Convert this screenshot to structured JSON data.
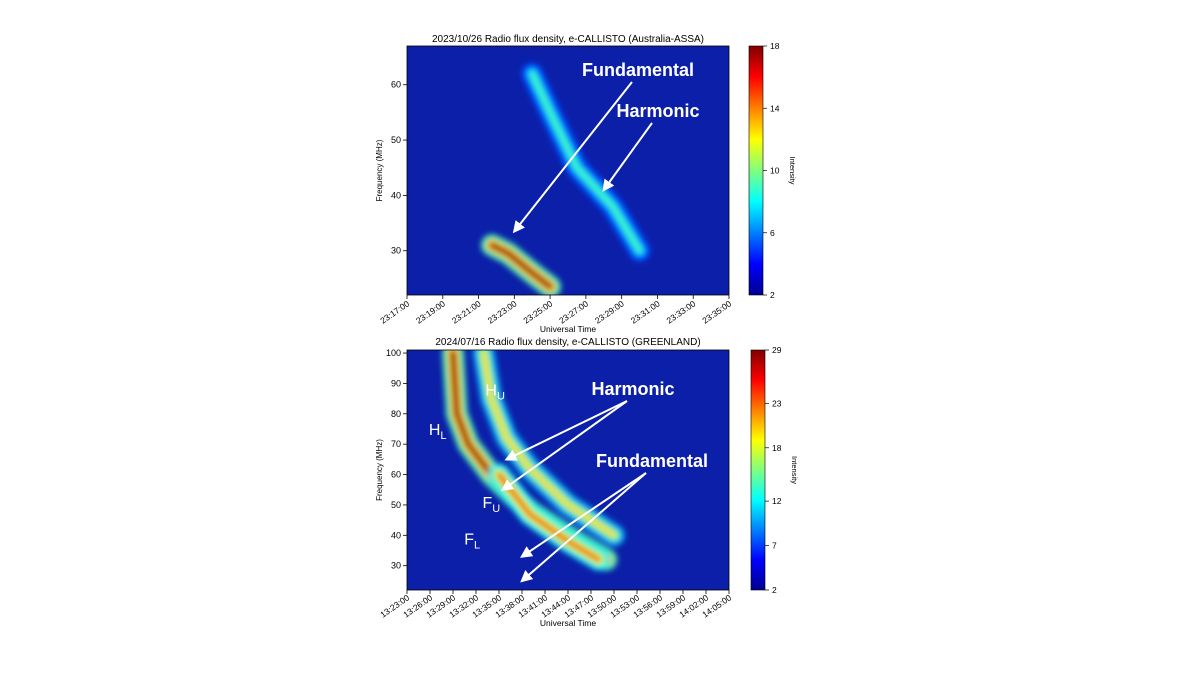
{
  "chart_data": [
    {
      "type": "heatmap",
      "title": "2023/10/26  Radio flux density, e-CALLISTO (Australia-ASSA)",
      "xlabel": "Universal Time",
      "ylabel": "Frequency (MHz)",
      "x_tick_labels": [
        "23:17:00",
        "23:19:00",
        "23:21:00",
        "23:23:00",
        "23:25:00",
        "23:27:00",
        "23:29:00",
        "23:31:00",
        "23:33:00",
        "23:35:00"
      ],
      "ylim": [
        22,
        67
      ],
      "y_ticks": [
        30,
        40,
        50,
        60
      ],
      "colorbar": {
        "label": "Intensity",
        "range": [
          2,
          18
        ],
        "ticks": [
          2,
          6,
          10,
          14,
          18
        ]
      },
      "annotations": [
        {
          "text": "Fundamental",
          "points_to": {
            "time": "23:23:00",
            "freq": 33.5
          }
        },
        {
          "text": "Harmonic",
          "points_to": {
            "time": "23:28:00",
            "freq": 41
          }
        }
      ],
      "features": [
        {
          "name": "",
          "path": [
            [
              "23:21:45",
              31
            ],
            [
              "23:22:40",
              29.5
            ],
            [
              "23:24:00",
              26
            ],
            [
              "23:25:00",
              23.5
            ]
          ],
          "peak": 18
        },
        {
          "name": "",
          "path": [
            [
              "23:24:00",
              62
            ],
            [
              "23:25:00",
              55
            ],
            [
              "23:26:30",
              45
            ],
            [
              "23:28:30",
              38
            ],
            [
              "23:30:00",
              30
            ]
          ],
          "peak": 9
        }
      ]
    },
    {
      "type": "heatmap",
      "title": "2024/07/16  Radio flux density, e-CALLISTO (GREENLAND)",
      "xlabel": "Universal Time",
      "ylabel": "Frequency (MHz)",
      "x_tick_labels": [
        "13:23:00",
        "13:26:00",
        "13:29:00",
        "13:32:00",
        "13:35:00",
        "13:38:00",
        "13:41:00",
        "13:44:00",
        "13:47:00",
        "13:50:00",
        "13:53:00",
        "13:56:00",
        "13:59:00",
        "14:02:00",
        "14:05:00"
      ],
      "ylim": [
        22,
        101
      ],
      "y_ticks": [
        30,
        40,
        50,
        60,
        70,
        80,
        90,
        100
      ],
      "colorbar": {
        "label": "Intensity",
        "range": [
          2,
          29
        ],
        "ticks": [
          2,
          7,
          12,
          18,
          23,
          29
        ]
      },
      "annotations": [
        {
          "text": "Harmonic",
          "points_to": [
            {
              "time": "13:36:00",
              "freq": 65
            },
            {
              "time": "13:35:30",
              "freq": 55
            }
          ]
        },
        {
          "text": "Fundamental",
          "points_to": [
            {
              "time": "13:38:00",
              "freq": 33
            },
            {
              "time": "13:38:00",
              "freq": 25
            }
          ]
        },
        {
          "text": "H",
          "sub": "U",
          "at": {
            "time": "13:34:30",
            "freq": 86
          }
        },
        {
          "text": "H",
          "sub": "L",
          "at": {
            "time": "13:27:00",
            "freq": 73
          }
        },
        {
          "text": "F",
          "sub": "U",
          "at": {
            "time": "13:34:00",
            "freq": 49
          }
        },
        {
          "text": "F",
          "sub": "L",
          "at": {
            "time": "13:31:30",
            "freq": 37
          }
        }
      ],
      "features": [
        {
          "name": "",
          "path": [
            [
              "13:29:00",
              100
            ],
            [
              "13:29:30",
              80
            ],
            [
              "13:31:00",
              70
            ],
            [
              "13:34:00",
              60
            ],
            [
              "13:39:00",
              48
            ],
            [
              "13:45:00",
              38
            ],
            [
              "13:49:00",
              32
            ]
          ],
          "peak": 29
        },
        {
          "name": "",
          "path": [
            [
              "13:33:00",
              100
            ],
            [
              "13:34:00",
              85
            ],
            [
              "13:36:00",
              72
            ],
            [
              "13:39:00",
              62
            ],
            [
              "13:44:00",
              50
            ],
            [
              "13:50:00",
              40
            ]
          ],
          "peak": 20
        },
        {
          "name": "",
          "path": [
            [
              "13:35:00",
              60
            ],
            [
              "13:39:00",
              47
            ],
            [
              "13:44:00",
              38
            ],
            [
              "13:48:00",
              32
            ]
          ],
          "peak": 24
        }
      ]
    }
  ]
}
